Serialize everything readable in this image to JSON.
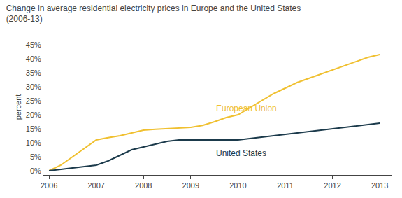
{
  "chart_data": {
    "type": "line",
    "title": "Change in average residential electricity prices in Europe and the United States",
    "subtitle": "(2006-13)",
    "y_label": "percent",
    "x": [
      2006,
      2006.25,
      2006.5,
      2006.75,
      2007,
      2007.25,
      2007.5,
      2007.75,
      2008,
      2008.25,
      2008.5,
      2008.75,
      2009,
      2009.25,
      2009.5,
      2009.75,
      2010,
      2010.25,
      2010.5,
      2010.75,
      2011,
      2011.25,
      2011.5,
      2011.75,
      2012,
      2012.25,
      2012.5,
      2012.75,
      2013
    ],
    "series": [
      {
        "name": "European Union",
        "color": "#F0C030",
        "values": [
          0,
          2,
          5,
          8,
          11,
          11.8,
          12.5,
          13.5,
          14.5,
          14.8,
          15.0,
          15.2,
          15.5,
          16.2,
          17.5,
          19.0,
          20.0,
          22.5,
          25.0,
          27.5,
          29.5,
          31.5,
          33.0,
          34.5,
          36.0,
          37.5,
          39.0,
          40.5,
          41.5
        ]
      },
      {
        "name": "United States",
        "color": "#1B3A4B",
        "values": [
          0,
          0.5,
          1.0,
          1.5,
          2.0,
          3.5,
          5.5,
          7.5,
          8.5,
          9.5,
          10.5,
          11.0,
          11.0,
          11.0,
          11.0,
          11.0,
          11.0,
          11.5,
          12.0,
          12.5,
          13.0,
          13.5,
          14.0,
          14.5,
          15.0,
          15.5,
          16.0,
          16.5,
          17.0
        ]
      }
    ],
    "xlim": [
      2005.88,
      2013.25
    ],
    "xticks": [
      2006,
      2007,
      2008,
      2009,
      2010,
      2011,
      2012,
      2013
    ],
    "ylim": [
      -1.5,
      47
    ],
    "yticks": [
      {
        "value": 0,
        "label": "0%"
      },
      {
        "value": 5,
        "label": "5%"
      },
      {
        "value": 10,
        "label": "10%"
      },
      {
        "value": 15,
        "label": "15%"
      },
      {
        "value": 20,
        "label": "20%"
      },
      {
        "value": 25,
        "label": "25%"
      },
      {
        "value": 30,
        "label": "30%"
      },
      {
        "value": 35,
        "label": "35%"
      },
      {
        "value": 40,
        "label": "40%"
      },
      {
        "value": 45,
        "label": "45%"
      }
    ],
    "grid": "y"
  }
}
